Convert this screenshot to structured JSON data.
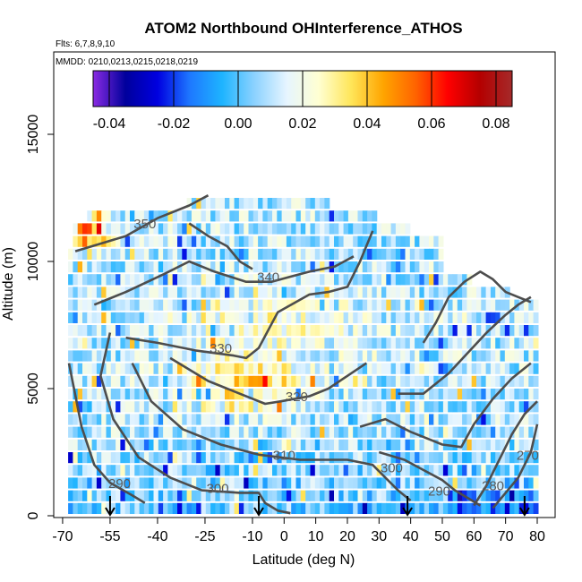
{
  "chart_data": {
    "type": "heatmap",
    "title": "ATOM2 Northbound OHInterference_ATHOS",
    "flights_label": "Flts: 6,7,8,9,10",
    "dates_label": "MMDD: 0210,0213,0215,0218,0219",
    "xlabel": "Latitude (deg N)",
    "ylabel": "Altitude (m)",
    "xlim": [
      -70,
      83
    ],
    "ylim": [
      0,
      17500
    ],
    "xticks": [
      -70,
      -55,
      -40,
      -25,
      -10,
      0,
      10,
      20,
      30,
      40,
      50,
      60,
      70,
      80
    ],
    "yticks": [
      0,
      5000,
      10000,
      15000
    ],
    "colorbar": {
      "range": [
        -0.045,
        0.085
      ],
      "ticks": [
        "-0.04",
        "-0.02",
        "0.00",
        "0.02",
        "0.04",
        "0.06",
        "0.08"
      ],
      "tick_values": [
        -0.04,
        -0.02,
        0.0,
        0.02,
        0.04,
        0.06,
        0.08
      ],
      "colors": [
        "#8a2be2",
        "#00009c",
        "#0000e0",
        "#1e78ff",
        "#1eb4ff",
        "#8cd2ff",
        "#e6f5ff",
        "#ffffd2",
        "#ffe65a",
        "#ffa500",
        "#ff6400",
        "#ff0000",
        "#b40000",
        "#a52a2a"
      ]
    },
    "profiles": [
      {
        "lat": -55,
        "alt": 0
      },
      {
        "lat": -8,
        "alt": 0
      },
      {
        "lat": 39,
        "alt": 0
      },
      {
        "lat": 76,
        "alt": 0
      }
    ],
    "contours": [
      {
        "label": "290",
        "label_lat": -52,
        "label_alt": 1100,
        "points": [
          [
            -68,
            6000
          ],
          [
            -64,
            3500
          ],
          [
            -60,
            2000
          ],
          [
            -55,
            1300
          ],
          [
            -48,
            800
          ],
          [
            -44,
            500
          ]
        ]
      },
      {
        "label": "300",
        "label_lat": -21,
        "label_alt": 900,
        "points": [
          [
            -55,
            7200
          ],
          [
            -58,
            5500
          ],
          [
            -54,
            3800
          ],
          [
            -46,
            2300
          ],
          [
            -36,
            1500
          ],
          [
            -26,
            1000
          ],
          [
            -14,
            900
          ],
          [
            -8,
            900
          ],
          [
            -6,
            500
          ],
          [
            -2,
            200
          ],
          [
            2,
            100
          ]
        ]
      },
      {
        "label": "310",
        "label_lat": 0,
        "label_alt": 2200,
        "points": [
          [
            -48,
            6000
          ],
          [
            -42,
            4500
          ],
          [
            -32,
            3400
          ],
          [
            -20,
            2800
          ],
          [
            -8,
            2400
          ],
          [
            5,
            2200
          ],
          [
            20,
            2200
          ],
          [
            28,
            2000
          ],
          [
            32,
            1500
          ],
          [
            36,
            1000
          ],
          [
            40,
            600
          ]
        ]
      },
      {
        "label": "320",
        "label_lat": 4,
        "label_alt": 4500,
        "points": [
          [
            -36,
            6200
          ],
          [
            -24,
            5300
          ],
          [
            -14,
            4800
          ],
          [
            -6,
            4400
          ],
          [
            -1,
            4500
          ],
          [
            8,
            4700
          ],
          [
            14,
            5000
          ],
          [
            20,
            5500
          ],
          [
            26,
            6000
          ]
        ]
      },
      {
        "label": "330",
        "label_lat": -20,
        "label_alt": 6400,
        "points": [
          [
            -50,
            7000
          ],
          [
            -40,
            6800
          ],
          [
            -28,
            6500
          ],
          [
            -16,
            6300
          ],
          [
            -12,
            6200
          ],
          [
            -8,
            6600
          ],
          [
            -2,
            8000
          ],
          [
            8,
            8700
          ],
          [
            14,
            8800
          ],
          [
            20,
            9000
          ],
          [
            24,
            10000
          ],
          [
            28,
            11200
          ]
        ]
      },
      {
        "label": "340",
        "label_lat": -5,
        "label_alt": 9200,
        "points": [
          [
            -60,
            8300
          ],
          [
            -50,
            8800
          ],
          [
            -38,
            9500
          ],
          [
            -30,
            10000
          ],
          [
            -22,
            9600
          ],
          [
            -12,
            9200
          ],
          [
            -4,
            9200
          ],
          [
            2,
            9400
          ],
          [
            8,
            9600
          ],
          [
            16,
            9800
          ],
          [
            22,
            10200
          ]
        ]
      },
      {
        "label": "350",
        "label_lat": -44,
        "label_alt": 11300,
        "points": [
          [
            -66,
            10400
          ],
          [
            -58,
            10700
          ],
          [
            -50,
            11000
          ],
          [
            -40,
            11700
          ],
          [
            -30,
            12200
          ],
          [
            -24,
            12600
          ]
        ]
      },
      {
        "label": "",
        "label_lat": 0,
        "label_alt": 0,
        "points": [
          [
            -30,
            11500
          ],
          [
            -24,
            11000
          ],
          [
            -18,
            10600
          ],
          [
            -14,
            10000
          ],
          [
            -10,
            9700
          ]
        ]
      },
      {
        "label": "",
        "label_lat": 0,
        "label_alt": 0,
        "points": [
          [
            44,
            6800
          ],
          [
            48,
            7600
          ],
          [
            52,
            8600
          ],
          [
            57,
            9200
          ],
          [
            62,
            9600
          ],
          [
            66,
            9300
          ],
          [
            70,
            8800
          ],
          [
            74,
            8600
          ],
          [
            78,
            8400
          ]
        ]
      },
      {
        "label": "",
        "label_lat": 0,
        "label_alt": 0,
        "points": [
          [
            36,
            4800
          ],
          [
            44,
            4800
          ],
          [
            52,
            5600
          ],
          [
            58,
            6400
          ],
          [
            64,
            7200
          ],
          [
            70,
            7900
          ],
          [
            74,
            8300
          ],
          [
            78,
            8600
          ]
        ]
      },
      {
        "label": "",
        "label_lat": 0,
        "label_alt": 0,
        "points": [
          [
            24,
            3500
          ],
          [
            32,
            3800
          ],
          [
            40,
            3300
          ],
          [
            46,
            3000
          ],
          [
            50,
            2800
          ],
          [
            56,
            2700
          ],
          [
            60,
            3600
          ],
          [
            66,
            4600
          ],
          [
            72,
            5400
          ],
          [
            78,
            6000
          ]
        ]
      },
      {
        "label": "",
        "label_lat": 0,
        "label_alt": 0,
        "points": [
          [
            30,
            2500
          ],
          [
            38,
            2200
          ],
          [
            44,
            1800
          ],
          [
            50,
            1400
          ],
          [
            54,
            1000
          ],
          [
            58,
            700
          ],
          [
            62,
            400
          ]
        ]
      },
      {
        "label": "",
        "label_lat": 0,
        "label_alt": 0,
        "points": [
          [
            60,
            400
          ],
          [
            64,
            1200
          ],
          [
            68,
            2200
          ],
          [
            72,
            3200
          ],
          [
            76,
            4000
          ],
          [
            80,
            4500
          ]
        ]
      },
      {
        "label": "",
        "label_lat": 0,
        "label_alt": 0,
        "points": [
          [
            66,
            300
          ],
          [
            70,
            900
          ],
          [
            74,
            1500
          ],
          [
            78,
            2500
          ],
          [
            80,
            3600
          ]
        ]
      }
    ],
    "contour_labels_extra": [
      {
        "label": "300",
        "label_lat": 34,
        "label_alt": 1700
      },
      {
        "label": "290",
        "label_lat": 49,
        "label_alt": 800
      },
      {
        "label": "280",
        "label_lat": 66,
        "label_alt": 1000
      },
      {
        "label": "270",
        "label_lat": 77,
        "label_alt": 2200
      }
    ]
  }
}
